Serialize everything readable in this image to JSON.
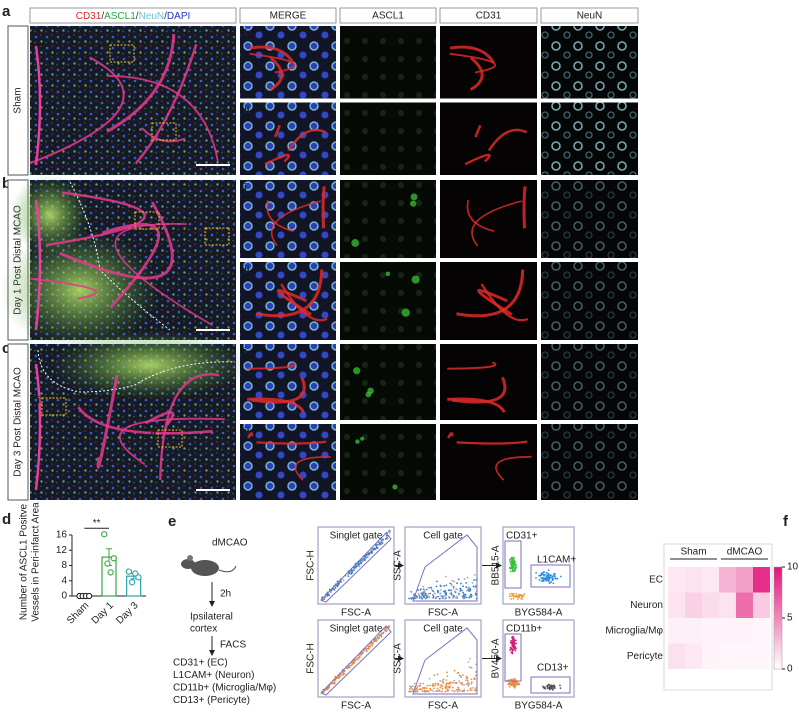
{
  "microscopy": {
    "header_parts": [
      {
        "text": "CD31",
        "color": "#e5262b"
      },
      {
        "text": "/",
        "color": "#333333"
      },
      {
        "text": "ASCL1",
        "color": "#27a642"
      },
      {
        "text": "/",
        "color": "#333333"
      },
      {
        "text": "NeuN",
        "color": "#6cc6d6"
      },
      {
        "text": "/",
        "color": "#333333"
      },
      {
        "text": "DAPI",
        "color": "#2531c9"
      }
    ],
    "columns": [
      "MERGE",
      "ASCL1",
      "CD31",
      "NeuN"
    ],
    "rows": [
      {
        "letter": "a",
        "condition": "Sham",
        "insets": [
          "i",
          "ii"
        ]
      },
      {
        "letter": "b",
        "condition": "Day 1 Post Distal MCAO",
        "insets": [
          "i",
          "ii"
        ]
      },
      {
        "letter": "c",
        "condition": "Day 3 Post Distal MCAO",
        "insets": [
          "i",
          "ii"
        ]
      }
    ]
  },
  "workflow": {
    "letter": "e",
    "model": "dMCAO",
    "time": "2h",
    "tissue": [
      "Ipsilateral",
      "cortex"
    ],
    "method": "FACS",
    "populations": [
      "CD31+ (EC)",
      "L1CAM+ (Neuron)",
      "CD11b+ (Microglia/Mφ)",
      "CD13+ (Pericyte)"
    ],
    "flow_rows": [
      {
        "plots": [
          {
            "gates": [
              "Singlet gate"
            ],
            "x_label": "FSC-A",
            "y_label": "FSC-H"
          },
          {
            "gates": [
              "Cell gate"
            ],
            "x_label": "FSC-A",
            "y_label": "SSC-A"
          },
          {
            "gates": [
              "CD31+",
              "L1CAM+"
            ],
            "x_label": "BYG584-A",
            "y_label": "BB515-A"
          }
        ]
      },
      {
        "plots": [
          {
            "gates": [
              "Singlet gate"
            ],
            "x_label": "FSC-A",
            "y_label": "FSC-H"
          },
          {
            "gates": [
              "Cell gate"
            ],
            "x_label": "FSC-A",
            "y_label": "SSC-A"
          },
          {
            "gates": [
              "CD11b+",
              "CD13+"
            ],
            "x_label": "BYG584-A",
            "y_label": "BV450-A"
          }
        ]
      }
    ]
  },
  "chart_data": [
    {
      "type": "bar",
      "label": "d",
      "ylabel": [
        "Number of ASCL1 Positve",
        "Vessels in Peri-infarct Area"
      ],
      "categories": [
        "Sham",
        "Day 1",
        "Day 3"
      ],
      "values": [
        0,
        10.2,
        5.2
      ],
      "errors": [
        0,
        2.2,
        0.7
      ],
      "colors": [
        "#222222",
        "#3aa845",
        "#2aa3a8"
      ],
      "points": [
        [
          0,
          0,
          0,
          0
        ],
        [
          16.2,
          8.5,
          6.2,
          9.9
        ],
        [
          6.4,
          3.6,
          5.9,
          4.9
        ]
      ],
      "ylim": [
        0,
        16
      ],
      "yticks": [
        0,
        4,
        8,
        12,
        16
      ],
      "significance": {
        "label": "**",
        "between": [
          0,
          1
        ]
      }
    },
    {
      "type": "heatmap",
      "label": "f",
      "groups": [
        {
          "name": "Sham",
          "columns": 3
        },
        {
          "name": "dMCAO",
          "columns": 3
        }
      ],
      "rows": [
        "EC",
        "Neuron",
        "Microglia/Mφ",
        "Pericyte"
      ],
      "values": [
        [
          1.0,
          1.2,
          1.0,
          3.2,
          4.0,
          8.8
        ],
        [
          1.2,
          2.0,
          1.5,
          1.2,
          6.2,
          2.2
        ],
        [
          0.6,
          0.6,
          0.5,
          0.5,
          0.5,
          0.4
        ],
        [
          1.3,
          1.0,
          0.5,
          0.4,
          0.4,
          0.4
        ]
      ],
      "zlim": [
        0,
        10
      ],
      "zticks": [
        0,
        5,
        10
      ],
      "color_low": "#ffffff",
      "color_high": "#e3137a"
    }
  ]
}
